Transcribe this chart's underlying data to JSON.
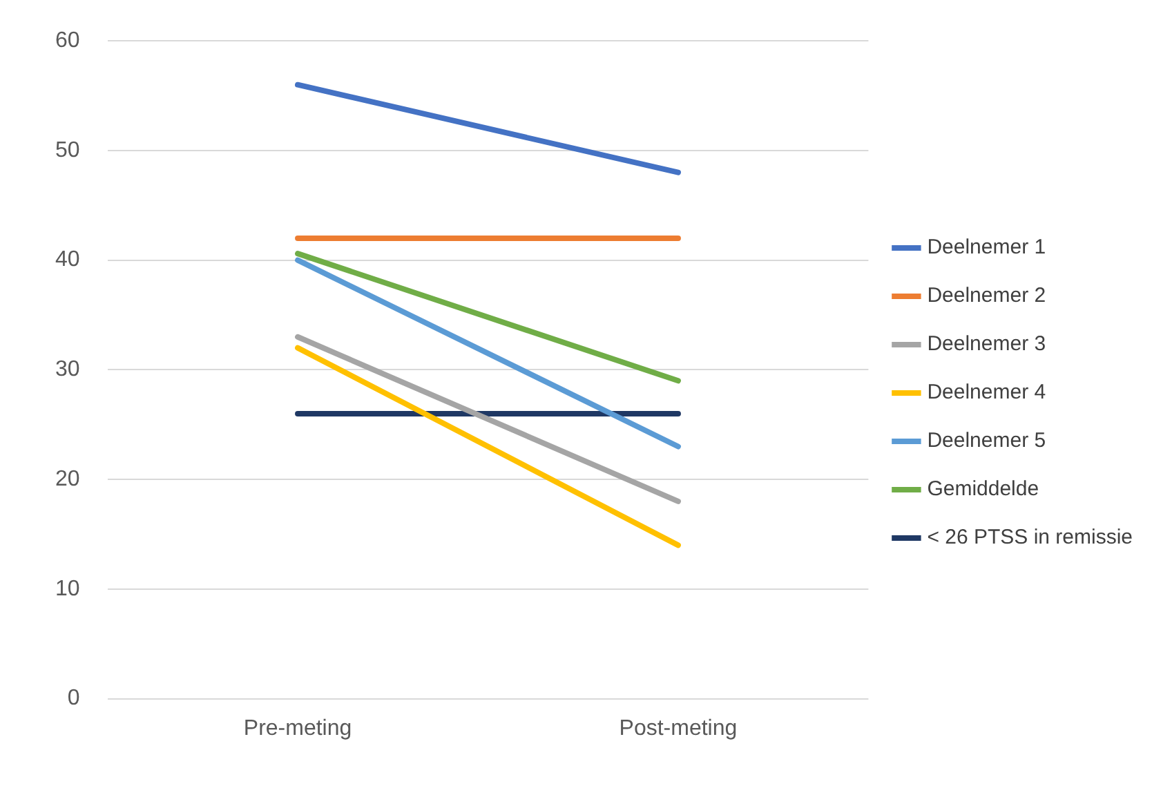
{
  "chart_data": {
    "type": "line",
    "categories": [
      "Pre-meting",
      "Post-meting"
    ],
    "series": [
      {
        "name": "Deelnemer 1",
        "color": "#4472c4",
        "values": [
          56,
          48
        ]
      },
      {
        "name": "Deelnemer 2",
        "color": "#ed7d31",
        "values": [
          42,
          42
        ]
      },
      {
        "name": "Deelnemer 3",
        "color": "#a5a5a5",
        "values": [
          33,
          18
        ]
      },
      {
        "name": "Deelnemer 4",
        "color": "#ffc000",
        "values": [
          32,
          14
        ]
      },
      {
        "name": "Deelnemer 5",
        "color": "#5b9bd5",
        "values": [
          40,
          23
        ]
      },
      {
        "name": "Gemiddelde",
        "color": "#70ad47",
        "values": [
          40.6,
          29
        ]
      },
      {
        "name": "< 26 PTSS in remissie",
        "color": "#1f3864",
        "values": [
          26,
          26
        ]
      }
    ],
    "ylim": [
      0,
      60
    ],
    "yticks": [
      0,
      10,
      20,
      30,
      40,
      50,
      60
    ],
    "grid": "y",
    "legend": "right",
    "marker": "none",
    "line_style": "solid"
  }
}
